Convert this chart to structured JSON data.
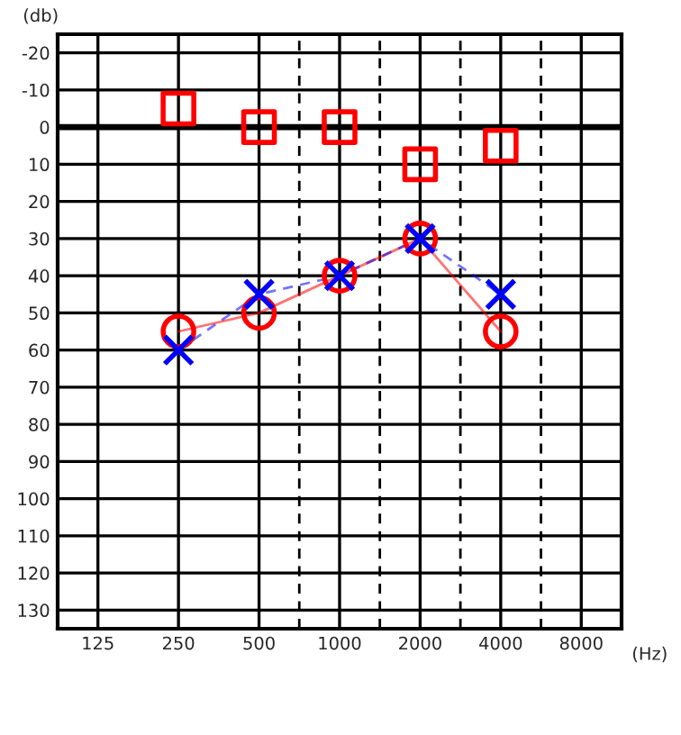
{
  "chart_data": {
    "type": "line",
    "xlabel": "(Hz)",
    "ylabel": "(db)",
    "log": "x",
    "x": [
      250,
      500,
      1000,
      2000,
      4000
    ],
    "xlim": [
      88.4,
      11314
    ],
    "xticks": [
      125,
      250,
      500,
      1000,
      2000,
      4000,
      8000
    ],
    "ylim": [
      135,
      -25
    ],
    "yticks": [
      -20,
      -10,
      0,
      10,
      20,
      30,
      40,
      50,
      60,
      70,
      80,
      90,
      100,
      110,
      120,
      130
    ],
    "grid": true,
    "series": [
      {
        "color": "#ff0000",
        "marker": "circle",
        "line_style": "solid",
        "values": [
          55,
          50,
          40,
          30,
          55
        ]
      },
      {
        "color": "#0000ff",
        "marker": "cross",
        "line_style": "dashed",
        "values": [
          60,
          45,
          40,
          30,
          45
        ]
      },
      {
        "type": "scatter",
        "color": "#ff0000",
        "marker": "square",
        "values": [
          -5,
          0,
          0,
          10,
          5
        ]
      }
    ],
    "ref_lines": [
      {
        "axis": "y",
        "value": 0,
        "color": "#000000",
        "line_style": "solid"
      },
      {
        "axis": "x",
        "value": 707,
        "color": "#000000",
        "line_style": "dashed"
      },
      {
        "axis": "x",
        "value": 1414,
        "color": "#000000",
        "line_style": "dashed"
      },
      {
        "axis": "x",
        "value": 2828,
        "color": "#000000",
        "line_style": "dashed"
      },
      {
        "axis": "x",
        "value": 5657,
        "color": "#000000",
        "line_style": "dashed"
      }
    ]
  }
}
